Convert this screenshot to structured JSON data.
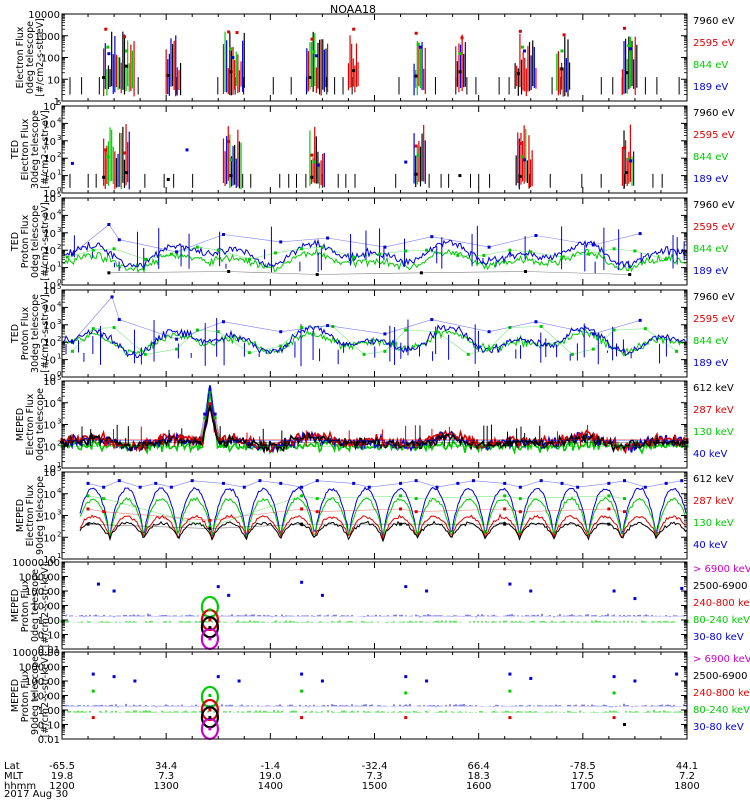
{
  "title": "NOAA18",
  "date_label": "2017 Aug 30",
  "x_axis": {
    "rows": [
      {
        "label": "Lat",
        "values": [
          "-65.5",
          "34.4",
          "-1.4",
          "-32.4",
          "66.4",
          "-78.5",
          "44.1"
        ]
      },
      {
        "label": "MLT",
        "values": [
          "19.8",
          "7.3",
          "19.0",
          "7.3",
          "18.3",
          "17.5",
          "7.2"
        ]
      },
      {
        "label": "hhmm",
        "values": [
          "1200",
          "1300",
          "1400",
          "1500",
          "1600",
          "1700",
          "1800"
        ]
      }
    ],
    "range_hours": [
      12,
      18
    ]
  },
  "chart_data": [
    {
      "type": "line",
      "ylabel": [
        "Electron Flux",
        "0deg telescope",
        "[#/cm2-s-str-eV]"
      ],
      "scale": "log",
      "ylim": [
        1,
        10000
      ],
      "tick_labels": [
        "1",
        "10",
        "100",
        "1000",
        "10000"
      ],
      "tick_exponents": [
        0,
        1,
        2,
        3,
        4
      ],
      "legend": [
        "7960 eV",
        "2595 eV",
        "844 eV",
        "189 eV"
      ],
      "legend_colors": [
        "#000000",
        "#e00000",
        "#00cc00",
        "#0000dd"
      ],
      "style": "ted_e0",
      "series": [
        {
          "color": "#000000",
          "x": [
            12.4,
            12.62,
            13.02,
            13.62,
            14.38,
            14.8,
            15.4,
            15.82,
            16.38,
            16.8,
            17.42
          ],
          "y": [
            12,
            40,
            15,
            22,
            12,
            25,
            14,
            22,
            18,
            30,
            20
          ]
        },
        {
          "color": "#e00000",
          "x": [
            12.42,
            12.6,
            13.6,
            13.68,
            14.4,
            14.8,
            15.4,
            15.84,
            16.4,
            16.82,
            17.4
          ],
          "y": [
            2000,
            900,
            1500,
            1400,
            700,
            2000,
            1300,
            800,
            1600,
            1100,
            2200
          ]
        },
        {
          "color": "#00cc00",
          "x": [
            12.44,
            12.62,
            13.62,
            14.42,
            15.42,
            15.82,
            16.42,
            16.8,
            17.44
          ],
          "y": [
            300,
            200,
            250,
            180,
            400,
            150,
            300,
            200,
            350
          ]
        },
        {
          "color": "#0000dd",
          "x": [
            12.45,
            13.64,
            14.44,
            15.44,
            16.44,
            17.46
          ],
          "y": [
            150,
            100,
            120,
            300,
            200,
            250
          ]
        }
      ]
    },
    {
      "type": "line",
      "ylabel": [
        "TED",
        "Electron Flux",
        "30deg telescope",
        "[#/cm2-s-str-eV]"
      ],
      "scale": "log",
      "ylim": [
        1,
        100000
      ],
      "tick_labels": [
        "10",
        "10",
        "10",
        "10",
        "10",
        "10"
      ],
      "tick_exponents": [
        0,
        1,
        2,
        3,
        4,
        5
      ],
      "legend": [
        "7960 eV",
        "2595 eV",
        "844 eV",
        "189 eV"
      ],
      "legend_colors": [
        "#000000",
        "#e00000",
        "#00cc00",
        "#0000dd"
      ],
      "style": "ted_e30",
      "series": [
        {
          "color": "#000000",
          "x": [
            12.4,
            12.62,
            13.02,
            13.62,
            14.4,
            15.4,
            15.82,
            16.4,
            17.42
          ],
          "y": [
            8,
            15,
            6,
            10,
            8,
            12,
            10,
            9,
            15
          ]
        },
        {
          "color": "#e00000",
          "x": [
            12.42,
            12.6,
            13.6,
            14.4,
            15.4,
            16.4,
            17.4
          ],
          "y": [
            300,
            200,
            900,
            150,
            500,
            700,
            400
          ]
        },
        {
          "color": "#00cc00",
          "x": [
            12.44,
            13.62,
            14.42,
            15.42,
            16.42,
            17.44
          ],
          "y": [
            120,
            80,
            60,
            150,
            120,
            90
          ]
        },
        {
          "color": "#0000dd",
          "x": [
            12.1,
            13.2,
            14.46,
            15.3,
            16.44,
            17.46
          ],
          "y": [
            50,
            300,
            40,
            60,
            80,
            70
          ]
        }
      ]
    },
    {
      "type": "line",
      "ylabel": [
        "TED",
        "Proton Flux",
        "0deg telescope",
        "[#/cm2-s-str-eV]"
      ],
      "scale": "log",
      "ylim": [
        1,
        100000
      ],
      "tick_labels": [
        "10",
        "10",
        "10",
        "10",
        "10",
        "10"
      ],
      "tick_exponents": [
        0,
        1,
        2,
        3,
        4,
        5
      ],
      "legend": [
        "7960 eV",
        "2595 eV",
        "844 eV",
        "189 eV"
      ],
      "legend_colors": [
        "#000000",
        "#e00000",
        "#00cc00",
        "#0000dd"
      ],
      "style": "ted_p0",
      "series": [
        {
          "color": "#00cc00",
          "x": [
            12.05,
            12.3,
            12.5,
            12.8,
            13.05,
            13.3,
            13.5,
            13.8,
            14.05,
            14.3,
            14.5,
            14.8,
            15.05,
            15.3,
            15.5,
            15.8,
            16.05,
            16.3,
            16.5,
            16.8,
            17.05,
            17.3,
            17.5,
            17.8
          ],
          "y": [
            40,
            100,
            120,
            30,
            60,
            150,
            100,
            30,
            70,
            120,
            150,
            40,
            60,
            90,
            100,
            50,
            50,
            100,
            80,
            40,
            60,
            120,
            90,
            30
          ]
        },
        {
          "color": "#0000dd",
          "x": [
            12.1,
            12.45,
            12.55,
            13.1,
            13.55,
            14.1,
            14.55,
            15.1,
            15.55,
            16.1,
            16.55,
            17.1,
            17.55
          ],
          "y": [
            60,
            3000,
            400,
            80,
            800,
            300,
            500,
            150,
            600,
            150,
            700,
            200,
            900
          ]
        },
        {
          "color": "#000000",
          "x": [
            12.45,
            13.6,
            14.45,
            15.45,
            16.45,
            17.45
          ],
          "y": [
            5,
            6,
            4,
            5,
            6,
            4
          ]
        }
      ]
    },
    {
      "type": "line",
      "ylabel": [
        "TED",
        "Proton Flux",
        "30deg telescope",
        "[#/cm2-s-str-eV]"
      ],
      "scale": "log",
      "ylim": [
        1,
        100000
      ],
      "tick_labels": [
        "10",
        "10",
        "10",
        "10",
        "10",
        "10"
      ],
      "tick_exponents": [
        0,
        1,
        2,
        3,
        4,
        5
      ],
      "legend": [
        "7960 eV",
        "2595 eV",
        "844 eV",
        "189 eV"
      ],
      "legend_colors": [
        "#000000",
        "#e00000",
        "#00cc00",
        "#0000dd"
      ],
      "style": "ted_p30",
      "series": [
        {
          "color": "#00cc00",
          "x": [
            12.1,
            12.3,
            12.5,
            12.8,
            13.1,
            13.3,
            13.5,
            13.8,
            14.1,
            14.3,
            14.6,
            14.9,
            15.1,
            15.3,
            15.6,
            15.9,
            16.1,
            16.3,
            16.6,
            16.9,
            17.1,
            17.3,
            17.6,
            17.9
          ],
          "y": [
            30,
            600,
            700,
            20,
            40,
            500,
            400,
            25,
            60,
            700,
            800,
            20,
            30,
            500,
            400,
            20,
            40,
            700,
            800,
            20,
            40,
            500,
            600,
            30
          ]
        },
        {
          "color": "#0000dd",
          "x": [
            12.1,
            12.48,
            12.55,
            13.1,
            13.55,
            14.1,
            14.55,
            15.1,
            15.55,
            16.1,
            16.55,
            17.1,
            17.55
          ],
          "y": [
            100,
            40000,
            2000,
            150,
            1500,
            400,
            900,
            300,
            2000,
            400,
            1500,
            300,
            1800
          ]
        }
      ]
    },
    {
      "type": "line",
      "ylabel": [
        "MEPED",
        "Electron Flux",
        "0deg telescope"
      ],
      "scale": "log",
      "ylim": [
        10,
        100000
      ],
      "tick_labels": [
        "10",
        "10",
        "10",
        "10",
        "10"
      ],
      "tick_exponents": [
        1,
        2,
        3,
        4,
        5
      ],
      "legend": [
        "612 keV",
        "287 keV",
        "130 keV",
        "40 keV"
      ],
      "legend_colors": [
        "#000000",
        "#e00000",
        "#00cc00",
        "#0000dd"
      ],
      "style": "meped_e0",
      "series": [
        {
          "color": "#00cc00",
          "x": [
            12.0,
            13.32,
            13.37,
            13.42,
            13.47,
            13.52,
            18.0
          ],
          "y": [
            100,
            100,
            2000,
            30000,
            2000,
            100,
            100
          ]
        },
        {
          "color": "#0000dd",
          "x": [
            12.0,
            13.32,
            13.37,
            13.42,
            13.47,
            13.52,
            18.0
          ],
          "y": [
            180,
            180,
            3000,
            40000,
            3000,
            180,
            180
          ]
        },
        {
          "color": "#e00000",
          "x": [
            12.0,
            13.32,
            13.42,
            13.52,
            18.0
          ],
          "y": [
            200,
            200,
            9000,
            200,
            200
          ]
        },
        {
          "color": "#000000",
          "x": [
            12.0,
            13.32,
            13.42,
            13.52,
            18.0
          ],
          "y": [
            150,
            150,
            5000,
            150,
            150
          ]
        }
      ]
    },
    {
      "type": "line",
      "ylabel": [
        "MEPED",
        "Electron Flux",
        "90deg telescope"
      ],
      "scale": "log",
      "ylim": [
        10,
        100000
      ],
      "tick_labels": [
        "10",
        "10",
        "10",
        "10",
        "10"
      ],
      "tick_exponents": [
        1,
        2,
        3,
        4,
        5
      ],
      "legend": [
        "612 keV",
        "287 keV",
        "130 keV",
        "40 keV"
      ],
      "legend_colors": [
        "#000000",
        "#e00000",
        "#00cc00",
        "#0000dd"
      ],
      "style": "meped_e90",
      "series": [
        {
          "color": "#0000dd",
          "x": [
            12.25,
            12.4,
            12.55,
            12.75,
            12.9,
            13.05,
            13.25,
            13.55,
            13.75,
            13.9,
            14.1,
            14.3,
            14.45,
            14.8,
            14.95,
            15.25,
            15.4,
            15.6,
            15.8,
            15.95,
            16.25,
            16.4,
            16.6,
            16.8,
            16.95,
            17.25,
            17.4,
            17.6,
            17.8,
            17.95
          ],
          "y": [
            30000,
            20000,
            40000,
            20000,
            30000,
            20000,
            40000,
            30000,
            20000,
            40000,
            30000,
            20000,
            40000,
            30000,
            20000,
            30000,
            40000,
            20000,
            30000,
            40000,
            30000,
            20000,
            40000,
            30000,
            20000,
            30000,
            40000,
            20000,
            30000,
            40000
          ]
        },
        {
          "color": "#e00000",
          "x": [
            12.25,
            12.4,
            13.42,
            14.3,
            14.45,
            15.25,
            15.4,
            16.25,
            16.4,
            17.25,
            17.4
          ],
          "y": [
            2000,
            1500,
            600,
            2000,
            1500,
            2000,
            1500,
            2000,
            1500,
            2000,
            1500
          ]
        },
        {
          "color": "#00cc00",
          "x": [
            12.25,
            12.4,
            13.42,
            14.3,
            14.45,
            15.25,
            15.4,
            16.25,
            16.4,
            17.25,
            17.4
          ],
          "y": [
            8000,
            6000,
            300,
            8000,
            6000,
            8000,
            6000,
            8000,
            6000,
            8000,
            6000
          ]
        },
        {
          "color": "#000000",
          "x": [
            12.25,
            13.42,
            14.3,
            15.25,
            16.25,
            17.25
          ],
          "y": [
            400,
            250,
            400,
            400,
            400,
            400
          ]
        }
      ]
    },
    {
      "type": "line",
      "ylabel": [
        "MEPED",
        "Proton Flux",
        "0deg telescope",
        "[#/cm2-s-str-keV]"
      ],
      "scale": "log",
      "ylim": [
        0.01,
        10000
      ],
      "tick_labels": [
        "0.01",
        "0.10",
        "1.00",
        "10.00",
        "100.00",
        "1000.00",
        "10000.00"
      ],
      "tick_exponents": [
        -2,
        -1,
        0,
        1,
        2,
        3,
        4
      ],
      "legend": [
        "> 6900 keV",
        "2500-6900 keV",
        "240-800 keV",
        "80-240 keV",
        "30-80 keV"
      ],
      "legend_colors": [
        "#cc00cc",
        "#000000",
        "#e00000",
        "#00cc00",
        "#0000dd"
      ],
      "style": "meped_p0",
      "series": [
        {
          "color": "#0000dd",
          "x": [
            12.35,
            12.5,
            13.5,
            13.6,
            14.3,
            14.5,
            15.3,
            15.5,
            16.3,
            16.5,
            17.3,
            17.5,
            17.95
          ],
          "y": [
            300,
            100,
            200,
            50,
            400,
            50,
            200,
            100,
            300,
            100,
            100,
            30,
            150
          ]
        },
        {
          "color": "#00cc00",
          "x": [
            12.0,
            13.42,
            18.0
          ],
          "y": [
            0.8,
            5,
            0.8
          ]
        },
        {
          "color": "#e00000",
          "x": [
            13.42
          ],
          "y": [
            1.0
          ]
        },
        {
          "color": "#000000",
          "x": [
            13.42
          ],
          "y": [
            0.3
          ]
        },
        {
          "color": "#cc00cc",
          "x": [
            13.42
          ],
          "y": [
            0.05
          ]
        }
      ]
    },
    {
      "type": "line",
      "ylabel": [
        "MEPED",
        "Proton Flux",
        "90deg telescope",
        "[#/cm2-s-str-keV]"
      ],
      "scale": "log",
      "ylim": [
        0.01,
        10000
      ],
      "tick_labels": [
        "0.01",
        "0.10",
        "1.00",
        "10.00",
        "100.00",
        "1000.00",
        "10000.00"
      ],
      "tick_exponents": [
        -2,
        -1,
        0,
        1,
        2,
        3,
        4
      ],
      "legend": [
        "> 6900 keV",
        "2500-6900 keV",
        "240-800 keV",
        "80-240 keV",
        "30-80 keV"
      ],
      "legend_colors": [
        "#cc00cc",
        "#000000",
        "#e00000",
        "#00cc00",
        "#0000dd"
      ],
      "style": "meped_p90",
      "series": [
        {
          "color": "#0000dd",
          "x": [
            12.3,
            12.5,
            12.7,
            13.5,
            13.7,
            14.3,
            14.5,
            15.3,
            15.5,
            16.3,
            16.5,
            17.3,
            17.5,
            17.9
          ],
          "y": [
            300,
            200,
            100,
            200,
            100,
            300,
            100,
            200,
            100,
            300,
            150,
            200,
            100,
            300
          ]
        },
        {
          "color": "#00cc00",
          "x": [
            12.3,
            13.42,
            14.3,
            15.3,
            16.3,
            17.3
          ],
          "y": [
            20,
            10,
            20,
            15,
            20,
            15
          ]
        },
        {
          "color": "#e00000",
          "x": [
            12.3,
            13.42,
            14.3,
            15.3,
            16.3,
            17.3
          ],
          "y": [
            0.3,
            1.0,
            0.3,
            0.3,
            0.3,
            0.3
          ]
        },
        {
          "color": "#000000",
          "x": [
            13.42,
            17.4
          ],
          "y": [
            0.3,
            0.1
          ]
        },
        {
          "color": "#cc00cc",
          "x": [
            13.42
          ],
          "y": [
            0.05
          ]
        }
      ]
    }
  ]
}
